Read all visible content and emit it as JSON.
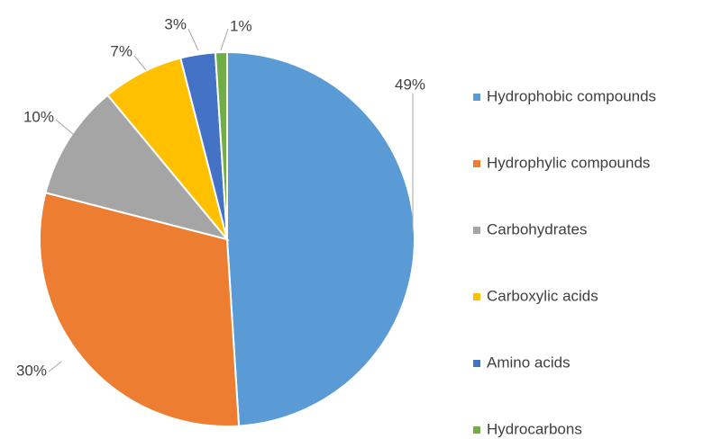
{
  "chart_data": {
    "type": "pie",
    "categories": [
      "Hydrophobic compounds",
      "Hydrophylic compounds",
      "Carbohydrates",
      "Carboxylic acids",
      "Amino acids",
      "Hydrocarbons"
    ],
    "values": [
      49,
      30,
      10,
      7,
      3,
      1
    ],
    "value_labels": [
      "49%",
      "30%",
      "10%",
      "7%",
      "3%",
      "1%"
    ],
    "colors": [
      "#5b9bd5",
      "#ed7d31",
      "#a5a5a5",
      "#ffc000",
      "#4472c4",
      "#70ad47"
    ],
    "legend": "right"
  }
}
